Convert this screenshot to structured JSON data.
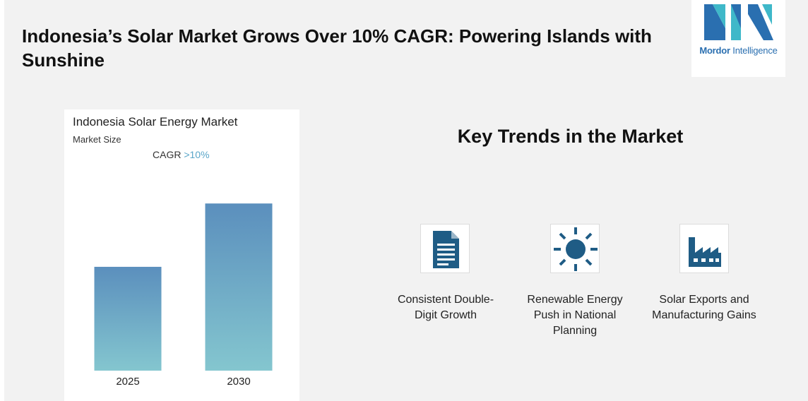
{
  "header": {
    "title": "Indonesia’s Solar Market Grows Over 10% CAGR: Powering Islands with Sunshine"
  },
  "logo": {
    "name_bold": "Mordor",
    "name_rest": " Intelligence",
    "brand_color": "#2a6fb0",
    "accent_color": "#3fb8c9"
  },
  "chart_data": {
    "type": "bar",
    "title": "Indonesia Solar Energy Market",
    "subtitle": "Market Size",
    "cagr_label": "CAGR ",
    "cagr_value": ">10%",
    "categories": [
      "2025",
      "2030"
    ],
    "values": [
      1.0,
      1.61
    ],
    "ylim": [
      0,
      1.7
    ],
    "grid": false,
    "bar_color_top": "#5b8fbd",
    "bar_color_bottom": "#84c6cf"
  },
  "trends": {
    "heading": "Key Trends in the Market",
    "items": [
      {
        "label": "Consistent Double-Digit Growth",
        "icon": "document-icon"
      },
      {
        "label": "Renewable Energy Push in National Planning",
        "icon": "sun-icon"
      },
      {
        "label": "Solar Exports and Manufacturing Gains",
        "icon": "factory-icon"
      }
    ],
    "icon_color": "#1f5c85"
  }
}
